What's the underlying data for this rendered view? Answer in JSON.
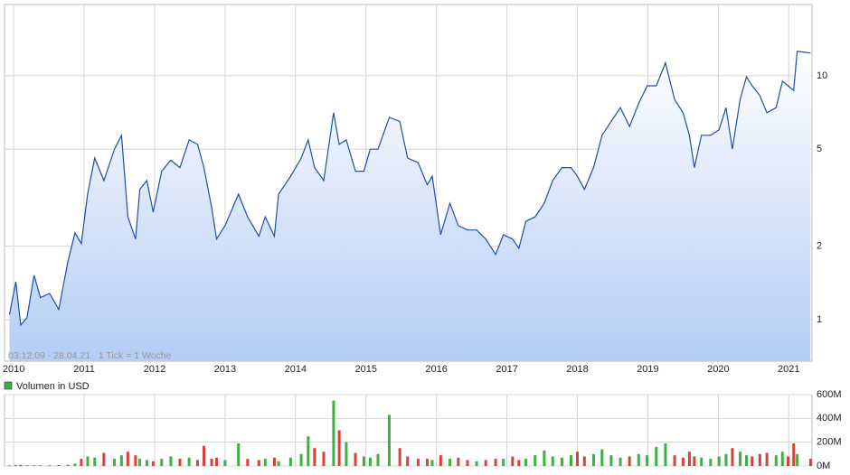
{
  "chart_data": [
    {
      "type": "line",
      "annotation": "03.12.09 - 28.04.21   1 Tick = 1 Woche",
      "x": [
        2009.94,
        2010.03,
        2010.1,
        2010.19,
        2010.29,
        2010.38,
        2010.51,
        2010.64,
        2010.77,
        2010.87,
        2010.96,
        2011.05,
        2011.15,
        2011.28,
        2011.43,
        2011.53,
        2011.62,
        2011.73,
        2011.79,
        2011.89,
        2011.98,
        2012.1,
        2012.23,
        2012.36,
        2012.49,
        2012.61,
        2012.7,
        2012.81,
        2012.88,
        2013.0,
        2013.19,
        2013.32,
        2013.48,
        2013.57,
        2013.7,
        2013.76,
        2013.93,
        2014.08,
        2014.18,
        2014.27,
        2014.4,
        2014.54,
        2014.62,
        2014.72,
        2014.85,
        2014.97,
        2015.06,
        2015.17,
        2015.33,
        2015.48,
        2015.59,
        2015.74,
        2015.87,
        2015.94,
        2016.06,
        2016.19,
        2016.31,
        2016.44,
        2016.57,
        2016.7,
        2016.84,
        2016.95,
        2017.08,
        2017.17,
        2017.27,
        2017.4,
        2017.53,
        2017.65,
        2017.78,
        2017.91,
        2018.0,
        2018.1,
        2018.23,
        2018.35,
        2018.48,
        2018.61,
        2018.74,
        2018.87,
        2018.99,
        2019.12,
        2019.25,
        2019.38,
        2019.5,
        2019.59,
        2019.66,
        2019.76,
        2019.89,
        2020.01,
        2020.11,
        2020.2,
        2020.31,
        2020.4,
        2020.48,
        2020.59,
        2020.69,
        2020.82,
        2020.91,
        2020.99,
        2021.07,
        2021.12,
        2021.31
      ],
      "values": [
        1.05,
        1.43,
        0.95,
        1.02,
        1.52,
        1.23,
        1.28,
        1.1,
        1.73,
        2.27,
        2.05,
        3.27,
        4.6,
        3.72,
        5.0,
        5.7,
        2.64,
        2.14,
        3.42,
        3.72,
        2.76,
        4.06,
        4.5,
        4.2,
        5.46,
        5.23,
        4.2,
        2.88,
        2.14,
        2.43,
        3.27,
        2.64,
        2.2,
        2.64,
        2.2,
        3.27,
        3.87,
        4.6,
        5.46,
        4.2,
        3.72,
        7.05,
        5.23,
        5.46,
        4.06,
        4.06,
        5.0,
        5.0,
        6.75,
        6.5,
        4.6,
        4.4,
        3.57,
        3.87,
        2.23,
        3.0,
        2.43,
        2.33,
        2.33,
        2.14,
        1.85,
        2.23,
        2.14,
        1.96,
        2.53,
        2.64,
        3.0,
        3.72,
        4.2,
        4.2,
        3.87,
        3.42,
        4.2,
        5.7,
        6.5,
        7.4,
        6.2,
        7.7,
        9.1,
        9.1,
        11.3,
        8.0,
        7.05,
        5.7,
        4.2,
        5.7,
        5.7,
        6.0,
        7.4,
        5.0,
        8.0,
        9.9,
        9.1,
        8.3,
        7.05,
        7.4,
        9.5,
        9.1,
        8.7,
        12.6,
        12.4
      ],
      "color": "#1f4fa8",
      "area": true,
      "log_scale": true,
      "xlim": [
        2009.87,
        2021.33
      ],
      "ylim": [
        0.675,
        19.6
      ],
      "xticks": [
        2010,
        2011,
        2012,
        2013,
        2014,
        2015,
        2016,
        2017,
        2018,
        2019,
        2020,
        2021
      ],
      "yticks": [
        1,
        2,
        5,
        10
      ],
      "grid": true
    },
    {
      "type": "bar",
      "series": [
        {
          "name": "Volumen in USD",
          "color": "#3cb043",
          "down_color": "#d9403a",
          "values": [
            5,
            8,
            10,
            6,
            7,
            5,
            6,
            8,
            10,
            20,
            60,
            80,
            70,
            110,
            60,
            90,
            120,
            90,
            60,
            50,
            40,
            60,
            80,
            60,
            70,
            50,
            170,
            60,
            70,
            50,
            190,
            60,
            50,
            60,
            70,
            40,
            70,
            100,
            250,
            150,
            120,
            550,
            300,
            200,
            110,
            80,
            70,
            100,
            430,
            150,
            80,
            60,
            60,
            50,
            90,
            60,
            70,
            50,
            40,
            50,
            60,
            60,
            80,
            50,
            60,
            90,
            130,
            80,
            70,
            90,
            120,
            80,
            100,
            140,
            90,
            70,
            80,
            100,
            90,
            160,
            190,
            90,
            70,
            120,
            80,
            70,
            60,
            80,
            100,
            150,
            120,
            90,
            80,
            100,
            110,
            90,
            120,
            80,
            190,
            100,
            60
          ]
        }
      ],
      "ylim": [
        0,
        600
      ],
      "yticks": [
        {
          "value": 0,
          "label": "0M"
        },
        {
          "value": 200,
          "label": "200M"
        },
        {
          "value": 400,
          "label": "400M"
        },
        {
          "value": 600,
          "label": "600M"
        }
      ],
      "grid": true
    }
  ]
}
